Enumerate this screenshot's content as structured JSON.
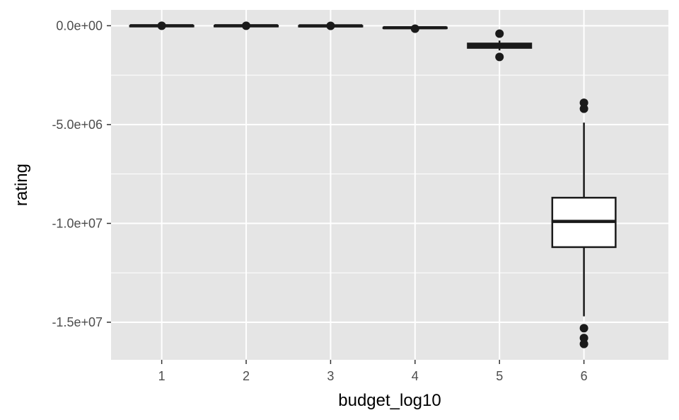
{
  "chart_data": {
    "type": "boxplot",
    "xlabel": "budget_log10",
    "ylabel": "rating",
    "categories": [
      "1",
      "2",
      "3",
      "4",
      "5",
      "6"
    ],
    "ylim": [
      -16900000,
      800000
    ],
    "yticks": [
      {
        "value": 0,
        "label": "0.0e+00"
      },
      {
        "value": -5000000,
        "label": "-5.0e+06"
      },
      {
        "value": -10000000,
        "label": "-1.0e+07"
      },
      {
        "value": -15000000,
        "label": "-1.5e+07"
      }
    ],
    "grid": true,
    "background": "#e5e5e5",
    "grid_color": "#ffffff",
    "box_fill": "#ffffff",
    "line_color": "#1a1a1a",
    "boxes": [
      {
        "category": "1",
        "low": 0,
        "q1": 0,
        "median": 0,
        "q3": 0,
        "high": 0,
        "outliers": [
          0
        ]
      },
      {
        "category": "2",
        "low": 0,
        "q1": 0,
        "median": 0,
        "q3": 0,
        "high": 0,
        "outliers": [
          0
        ]
      },
      {
        "category": "3",
        "low": -5000,
        "q1": -5000,
        "median": -5000,
        "q3": -5000,
        "high": -5000,
        "outliers": [
          -5000
        ]
      },
      {
        "category": "4",
        "low": -110000,
        "q1": -110000,
        "median": -100000,
        "q3": -90000,
        "high": -80000,
        "outliers": [
          -150000
        ]
      },
      {
        "category": "5",
        "low": -1250000,
        "q1": -1120000,
        "median": -1010000,
        "q3": -900000,
        "high": -750000,
        "outliers": [
          -400000,
          -1580000
        ]
      },
      {
        "category": "6",
        "low": -14700000,
        "q1": -11200000,
        "median": -9900000,
        "q3": -8700000,
        "high": -4900000,
        "outliers": [
          -3900000,
          -4200000,
          -15300000,
          -15800000,
          -16100000
        ]
      }
    ]
  }
}
